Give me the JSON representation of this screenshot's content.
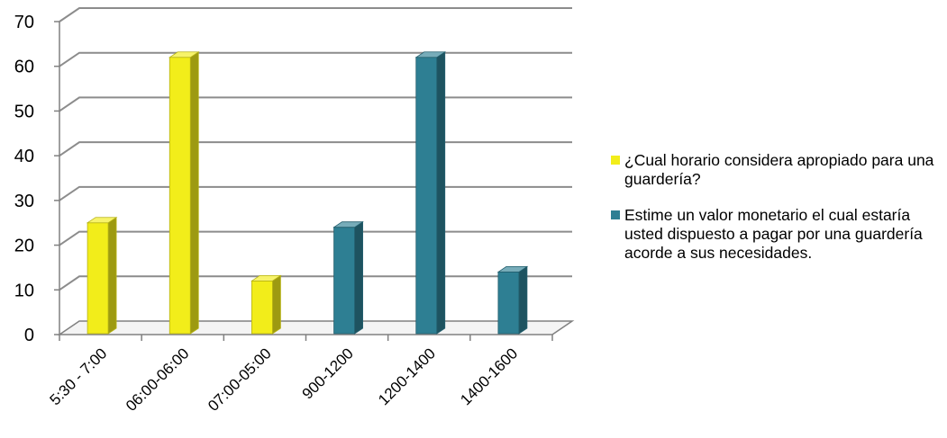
{
  "chart_data": {
    "type": "bar",
    "categories": [
      "5:30 - 7:00",
      "06:00-06:00",
      "07:00-05:00",
      "900-1200",
      "1200-1400",
      "1400-1600"
    ],
    "series": [
      {
        "name": "¿Cual  horario considera apropiado para una guardería?",
        "color": "#f2ed1a",
        "values": [
          25,
          62,
          12,
          null,
          null,
          null
        ]
      },
      {
        "name": "Estime un valor monetario el cual estaría usted dispuesto a pagar por una guardería acorde a sus necesidades.",
        "color": "#2e7f93",
        "values": [
          null,
          null,
          null,
          24,
          62,
          14
        ]
      }
    ],
    "ylim": [
      0,
      70
    ],
    "yticks": [
      0,
      10,
      20,
      30,
      40,
      50,
      60,
      70
    ],
    "ytick_labels": [
      "0",
      "10",
      "20",
      "30",
      "40",
      "50",
      "60",
      "70"
    ],
    "grid": true,
    "legend_position": "right",
    "title": "",
    "xlabel": "",
    "ylabel": ""
  }
}
